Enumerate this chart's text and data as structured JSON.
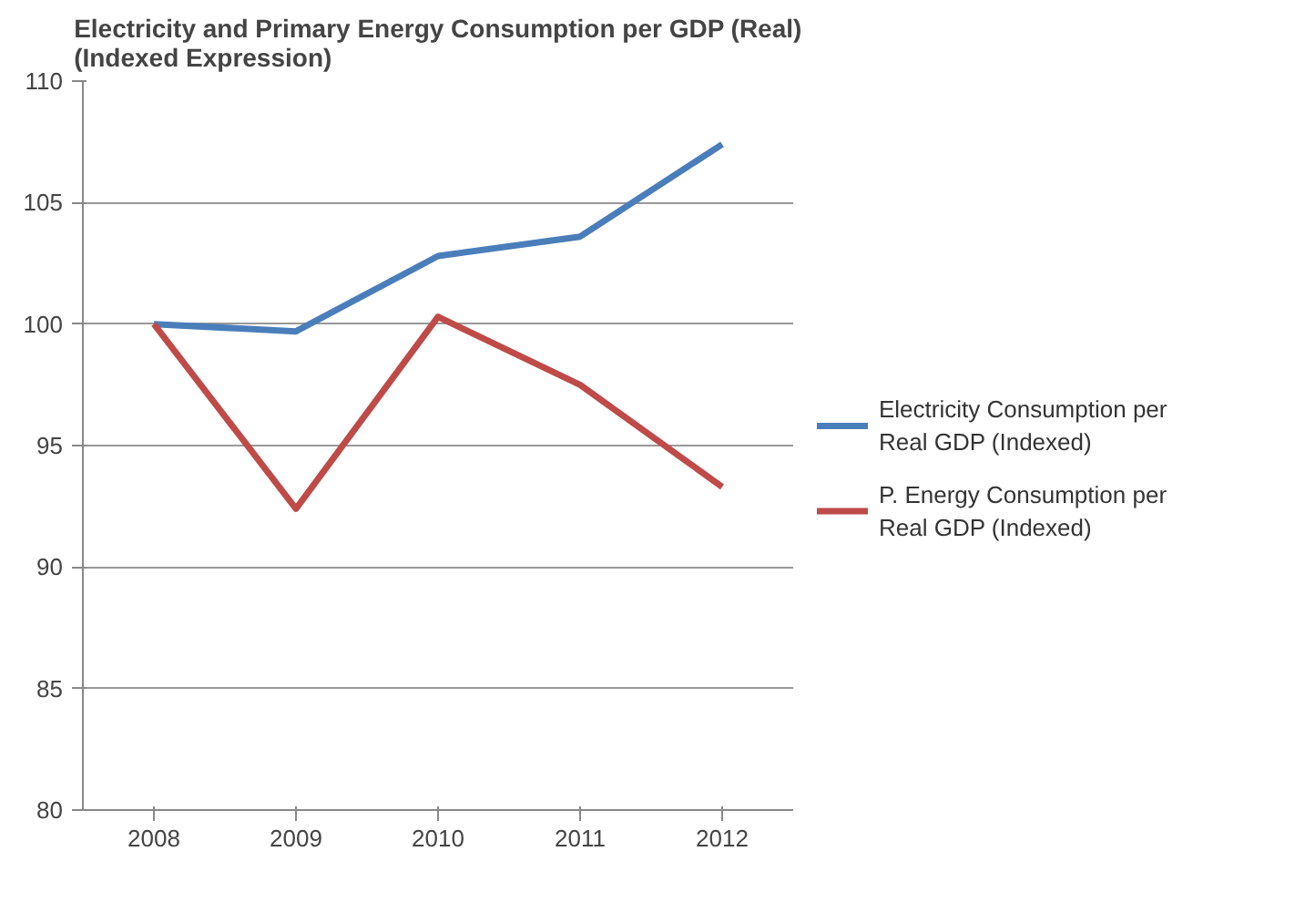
{
  "chart_data": {
    "type": "line",
    "title": "Electricity and Primary Energy Consumption per GDP (Real)\n(Indexed Expression)",
    "categories": [
      "2008",
      "2009",
      "2010",
      "2011",
      "2012"
    ],
    "series": [
      {
        "name": "Electricity Consumption per Real GDP (Indexed)",
        "color": "#4a7ebb",
        "values": [
          100,
          99.7,
          102.8,
          103.6,
          107.4
        ]
      },
      {
        "name": "P. Energy Consumption per Real GDP (Indexed)",
        "color": "#be4b48",
        "values": [
          100,
          92.4,
          100.3,
          97.5,
          93.3
        ]
      }
    ],
    "ylim": [
      80,
      110
    ],
    "yticks": [
      80,
      85,
      90,
      95,
      100,
      105,
      110
    ],
    "grid": "y",
    "legend": "right",
    "marker": "none",
    "line_style": "solid"
  }
}
